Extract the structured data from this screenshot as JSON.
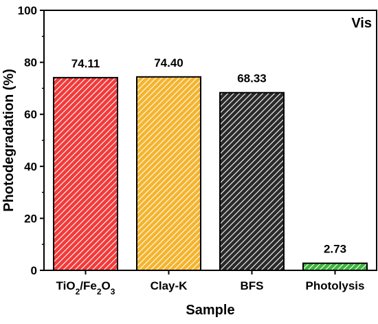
{
  "chart_data": {
    "type": "bar",
    "categories": [
      "TiO2/Fe2O3",
      "Clay-K",
      "BFS",
      "Photolysis"
    ],
    "categories_rich": [
      [
        {
          "t": "TiO"
        },
        {
          "t": "2",
          "sub": true
        },
        {
          "t": "/Fe"
        },
        {
          "t": "2",
          "sub": true
        },
        {
          "t": "O"
        },
        {
          "t": "3",
          "sub": true
        }
      ],
      [
        {
          "t": "Clay-K"
        }
      ],
      [
        {
          "t": "BFS"
        }
      ],
      [
        {
          "t": "Photolysis"
        }
      ]
    ],
    "values": [
      74.11,
      74.4,
      68.33,
      2.73
    ],
    "value_labels": [
      "74.11",
      "74.40",
      "68.33",
      "2.73"
    ],
    "bar_colors": [
      "#f23a3a",
      "#f5b42e",
      "#2a2a2a",
      "#3cb43c"
    ],
    "xlabel": "Sample",
    "ylabel": "Photodegradation (%)",
    "ylim": [
      0,
      100
    ],
    "yticks": [
      0,
      20,
      40,
      60,
      80,
      100
    ],
    "annotation": "Vis",
    "grid": false
  }
}
